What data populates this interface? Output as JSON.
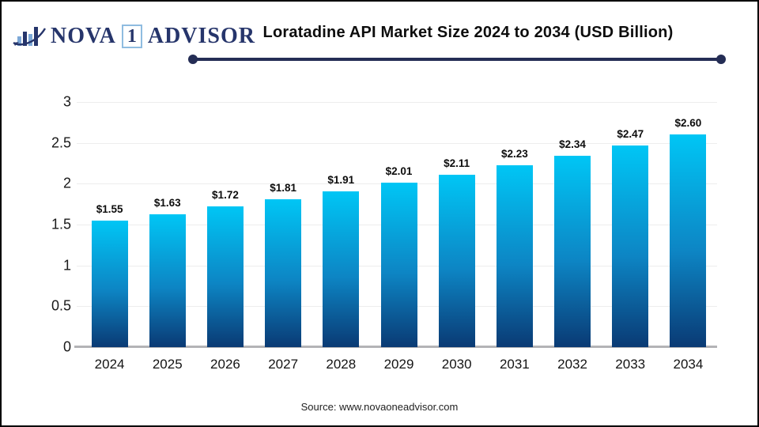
{
  "logo": {
    "name_part1": "NOVA",
    "badge": "1",
    "name_part2": "ADVISOR",
    "navy": "#26356b",
    "badge_border": "#8fbce0",
    "icon_light_blue": "#7da9d8",
    "icon_dark_blue": "#26356b"
  },
  "header": {
    "title": "Loratadine API Market Size 2024 to 2034 (USD Billion)",
    "rule_color": "#242d55"
  },
  "chart_data": {
    "type": "bar",
    "title": "Loratadine API Market Size 2024 to 2034 (USD Billion)",
    "categories": [
      "2024",
      "2025",
      "2026",
      "2027",
      "2028",
      "2029",
      "2030",
      "2031",
      "2032",
      "2033",
      "2034"
    ],
    "values": [
      1.55,
      1.63,
      1.72,
      1.81,
      1.91,
      2.01,
      2.11,
      2.23,
      2.34,
      2.47,
      2.6
    ],
    "value_labels": [
      "$1.55",
      "$1.63",
      "$1.72",
      "$1.81",
      "$1.91",
      "$2.01",
      "$2.11",
      "$2.23",
      "$2.34",
      "$2.47",
      "$2.60"
    ],
    "xlabel": "",
    "ylabel": "",
    "ylim": [
      0,
      3
    ],
    "yticks": [
      0,
      0.5,
      1,
      1.5,
      2,
      2.5,
      3
    ],
    "ytick_labels": [
      "0",
      "0.5",
      "1",
      "1.5",
      "2",
      "2.5",
      "3"
    ],
    "grid": true,
    "legend": "none",
    "bar_color_top": "#00c6f5",
    "bar_color_mid": "#0d85c4",
    "bar_color_bottom": "#0a3a74",
    "axis_line_color": "#b3b3b6",
    "gridline_color": "#ededed"
  },
  "footer": {
    "source": "Source: www.novaoneadvisor.com"
  }
}
